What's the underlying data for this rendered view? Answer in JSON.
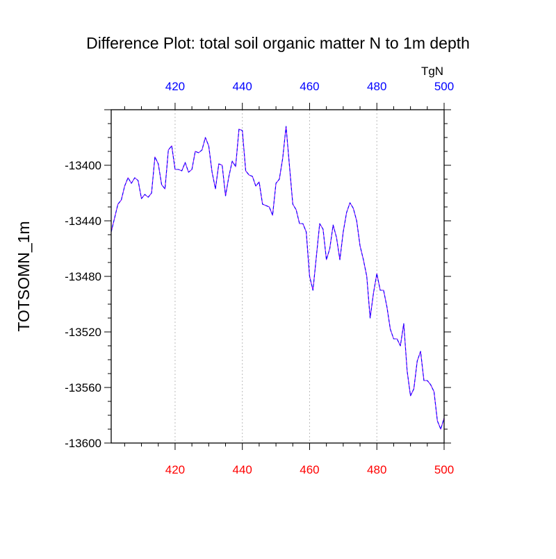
{
  "chart_data": {
    "type": "line",
    "title": "Difference Plot: total soil organic matter N to 1m depth",
    "ylabel": "TOTSOMN_1m",
    "top_axis_unit": "TgN",
    "xlim": [
      401,
      500
    ],
    "ylim": [
      -13600,
      -13360
    ],
    "x_ticks_bottom": [
      420,
      440,
      460,
      480,
      500
    ],
    "x_ticks_top": [
      420,
      440,
      460,
      480,
      500
    ],
    "y_ticks": [
      -13600,
      -13560,
      -13520,
      -13480,
      -13440,
      -13400
    ],
    "grid": "vertical dotted lines at major x ticks",
    "colors": {
      "series_solid": "#8b00ff",
      "series_dashed": "#0000ff",
      "bottom_tick_labels": "#ff0000",
      "top_tick_labels": "#0000ff",
      "axis": "#000000",
      "grid": "#bbbbbb"
    },
    "series": [
      {
        "x": [
          401,
          402,
          403,
          404,
          405,
          406,
          407,
          408,
          409,
          410,
          411,
          412,
          413,
          414,
          415,
          416,
          417,
          418,
          419,
          420,
          421,
          422,
          423,
          424,
          425,
          426,
          427,
          428,
          429,
          430,
          431,
          432,
          433,
          434,
          435,
          436,
          437,
          438,
          439,
          440,
          441,
          442,
          443,
          444,
          445,
          446,
          447,
          448,
          449,
          450,
          451,
          452,
          453,
          454,
          455,
          456,
          457,
          458,
          459,
          460,
          461,
          462,
          463,
          464,
          465,
          466,
          467,
          468,
          469,
          470,
          471,
          472,
          473,
          474,
          475,
          476,
          477,
          478,
          479,
          480,
          481,
          482,
          483,
          484,
          485,
          486,
          487,
          488,
          489,
          490,
          491,
          492,
          493,
          494,
          495,
          496,
          497,
          498,
          499,
          500
        ],
        "values": [
          -13448,
          -13438,
          -13428,
          -13425,
          -13415,
          -13409,
          -13413,
          -13409,
          -13411,
          -13424,
          -13421,
          -13423,
          -13420,
          -13394,
          -13399,
          -13414,
          -13417,
          -13389,
          -13386,
          -13403,
          -13403,
          -13404,
          -13398,
          -13405,
          -13403,
          -13390,
          -13391,
          -13389,
          -13380,
          -13386,
          -13405,
          -13417,
          -13399,
          -13400,
          -13422,
          -13408,
          -13397,
          -13401,
          -13374,
          -13375,
          -13404,
          -13407,
          -13408,
          -13415,
          -13412,
          -13428,
          -13429,
          -13430,
          -13436,
          -13413,
          -13410,
          -13395,
          -13372,
          -13400,
          -13428,
          -13432,
          -13442,
          -13442,
          -13448,
          -13480,
          -13490,
          -13466,
          -13442,
          -13446,
          -13468,
          -13460,
          -13443,
          -13452,
          -13468,
          -13448,
          -13434,
          -13427,
          -13431,
          -13440,
          -13458,
          -13468,
          -13480,
          -13510,
          -13492,
          -13478,
          -13490,
          -13490,
          -13502,
          -13518,
          -13525,
          -13525,
          -13530,
          -13514,
          -13548,
          -13566,
          -13561,
          -13541,
          -13534,
          -13555,
          -13555,
          -13558,
          -13563,
          -13584,
          -13590,
          -13582
        ]
      }
    ]
  }
}
